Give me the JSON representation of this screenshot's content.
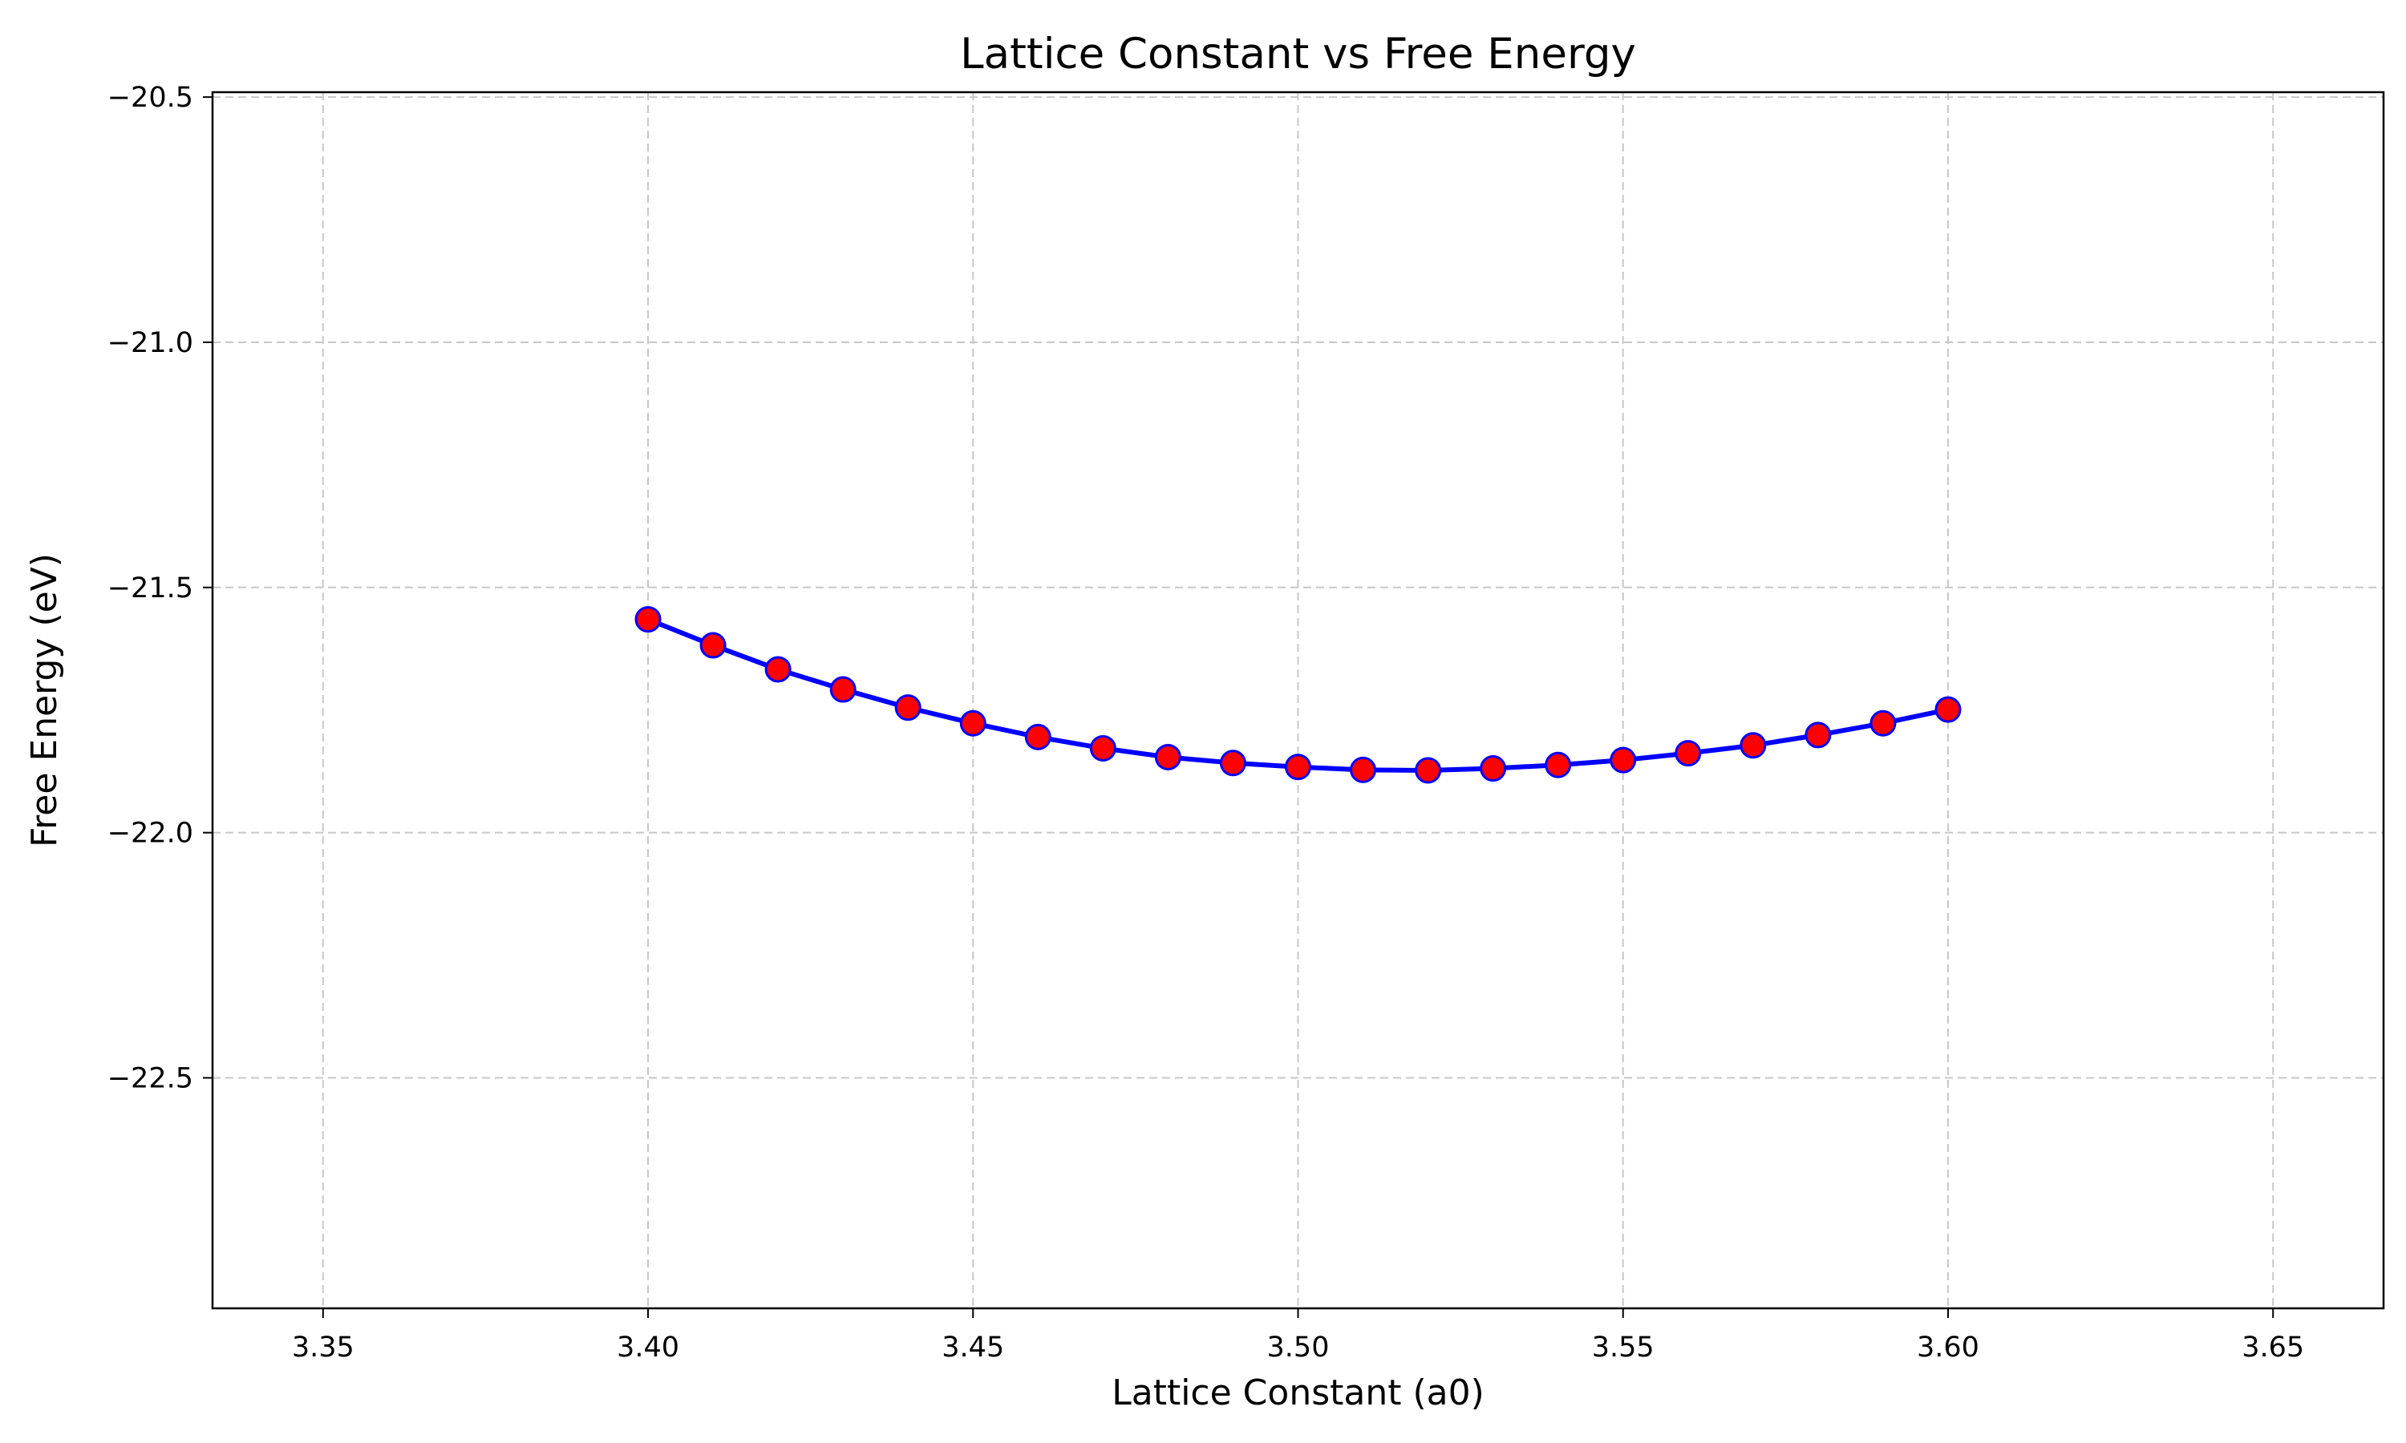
{
  "chart_data": {
    "type": "line",
    "title": "Lattice Constant vs Free Energy",
    "xlabel": "Lattice Constant (a0)",
    "ylabel": "Free Energy (eV)",
    "xlim": [
      3.333,
      3.667
    ],
    "ylim": [
      -22.97,
      -20.49
    ],
    "xticks": [
      3.35,
      3.4,
      3.45,
      3.5,
      3.55,
      3.6,
      3.65
    ],
    "xtick_labels": [
      "3.35",
      "3.40",
      "3.45",
      "3.50",
      "3.55",
      "3.60",
      "3.65"
    ],
    "yticks": [
      -20.5,
      -21.0,
      -21.5,
      -22.0,
      -22.5
    ],
    "ytick_labels": [
      "−20.5",
      "−21.0",
      "−21.5",
      "−22.0",
      "−22.5"
    ],
    "grid": true,
    "grid_style": "dashed",
    "colors": {
      "line": "#0000ff",
      "marker_fill": "#ff0000",
      "marker_edge": "#0000ff",
      "grid": "#c8c8c8"
    },
    "series": [
      {
        "x": [
          3.4,
          3.41,
          3.42,
          3.43,
          3.44,
          3.45,
          3.46,
          3.47,
          3.48,
          3.49,
          3.5,
          3.51,
          3.52,
          3.53,
          3.54,
          3.55,
          3.56,
          3.57,
          3.58,
          3.59,
          3.6
        ],
        "y": [
          -21.565,
          -21.618,
          -21.667,
          -21.708,
          -21.745,
          -21.777,
          -21.805,
          -21.828,
          -21.846,
          -21.858,
          -21.866,
          -21.872,
          -21.873,
          -21.869,
          -21.862,
          -21.852,
          -21.838,
          -21.822,
          -21.801,
          -21.777,
          -21.749
        ]
      }
    ]
  }
}
